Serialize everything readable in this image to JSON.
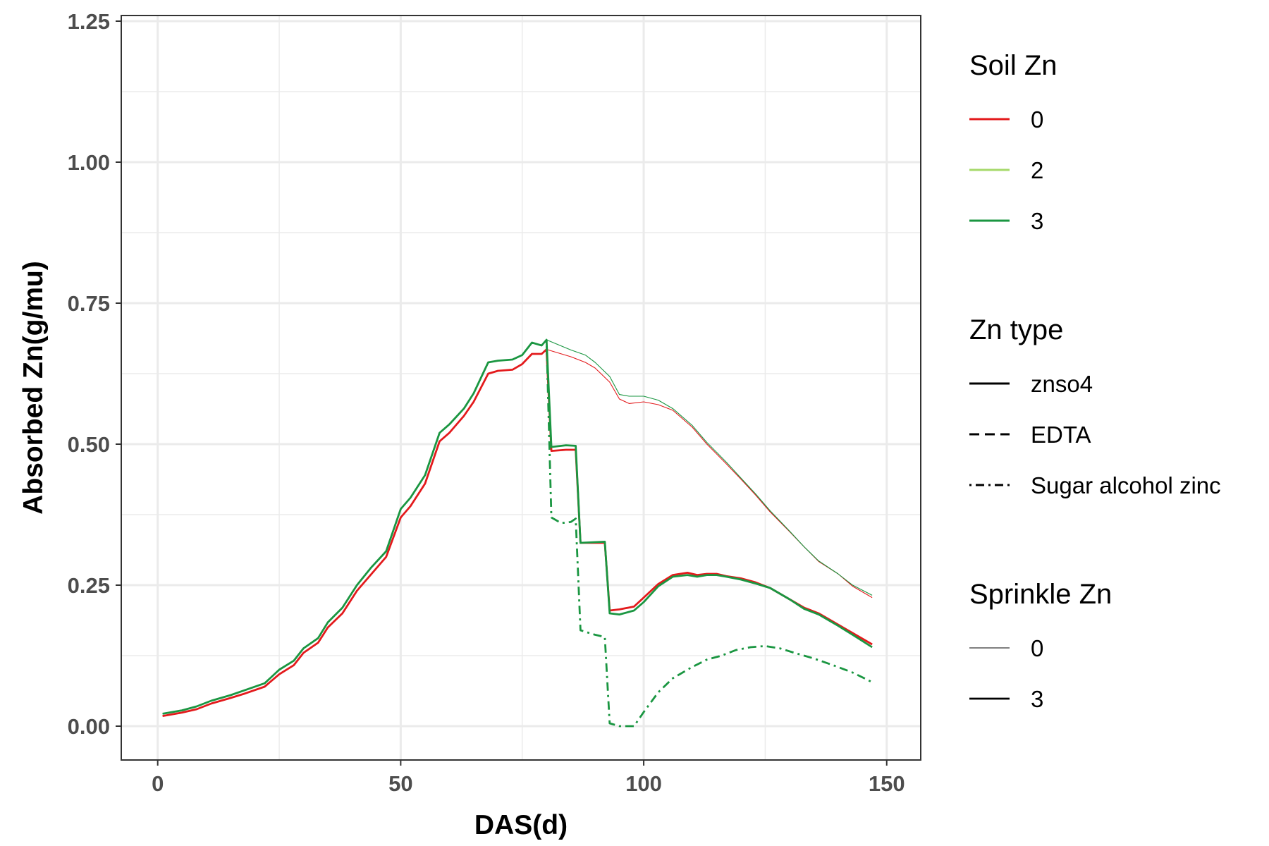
{
  "chart_data": {
    "type": "line",
    "xlabel": "DAS(d)",
    "ylabel": "Absorbed Zn(g/mu)",
    "xlim": [
      -7.5,
      157
    ],
    "ylim": [
      -0.06,
      1.26
    ],
    "x_ticks": [
      0,
      50,
      100,
      150
    ],
    "x_tick_labels": [
      "0",
      "50",
      "100",
      "150"
    ],
    "y_ticks": [
      0.0,
      0.25,
      0.5,
      0.75,
      1.0,
      1.25
    ],
    "y_tick_labels": [
      "0.00",
      "0.25",
      "0.50",
      "0.75",
      "1.00",
      "1.25"
    ],
    "grid": true,
    "legend_placement": "right",
    "legends": [
      {
        "title": "Soil Zn",
        "kind": "color",
        "entries": [
          {
            "label": "0",
            "color": "#e31a1c"
          },
          {
            "label": "2",
            "color": "#a6d96a"
          },
          {
            "label": "3",
            "color": "#1a9641"
          }
        ]
      },
      {
        "title": "Zn type",
        "kind": "linetype",
        "entries": [
          {
            "label": "znso4",
            "linetype": "solid"
          },
          {
            "label": "EDTA",
            "linetype": "dashed"
          },
          {
            "label": "Sugar alcohol zinc",
            "linetype": "dotdash"
          }
        ]
      },
      {
        "title": "Sprinkle Zn",
        "kind": "linewidth",
        "entries": [
          {
            "label": "0",
            "width": "thin"
          },
          {
            "label": "3",
            "width": "thick"
          }
        ]
      }
    ],
    "series": [
      {
        "soil_zn": "0",
        "zn_type": "znso4",
        "sprinkle_zn": "0",
        "color": "#e31a1c",
        "linetype": "solid",
        "width": "thin",
        "points": [
          [
            1,
            0.018
          ],
          [
            5,
            0.024
          ],
          [
            8,
            0.03
          ],
          [
            11,
            0.04
          ],
          [
            15,
            0.05
          ],
          [
            18,
            0.058
          ],
          [
            22,
            0.07
          ],
          [
            25,
            0.092
          ],
          [
            28,
            0.108
          ],
          [
            30,
            0.13
          ],
          [
            33,
            0.148
          ],
          [
            35,
            0.175
          ],
          [
            38,
            0.2
          ],
          [
            41,
            0.24
          ],
          [
            44,
            0.27
          ],
          [
            47,
            0.3
          ],
          [
            50,
            0.37
          ],
          [
            52,
            0.39
          ],
          [
            55,
            0.43
          ],
          [
            58,
            0.505
          ],
          [
            60,
            0.52
          ],
          [
            63,
            0.55
          ],
          [
            65,
            0.575
          ],
          [
            68,
            0.625
          ],
          [
            70,
            0.63
          ],
          [
            73,
            0.632
          ],
          [
            75,
            0.642
          ],
          [
            77,
            0.66
          ],
          [
            79,
            0.66
          ],
          [
            80,
            0.668
          ],
          [
            85,
            0.655
          ],
          [
            88,
            0.645
          ],
          [
            90,
            0.635
          ],
          [
            93,
            0.61
          ],
          [
            95,
            0.58
          ],
          [
            97,
            0.572
          ],
          [
            100,
            0.575
          ],
          [
            103,
            0.57
          ],
          [
            106,
            0.56
          ],
          [
            110,
            0.53
          ],
          [
            113,
            0.5
          ],
          [
            117,
            0.465
          ],
          [
            120,
            0.438
          ],
          [
            123,
            0.41
          ],
          [
            126,
            0.38
          ],
          [
            130,
            0.345
          ],
          [
            133,
            0.318
          ],
          [
            136,
            0.292
          ],
          [
            140,
            0.27
          ],
          [
            143,
            0.248
          ],
          [
            147,
            0.228
          ]
        ]
      },
      {
        "soil_zn": "3",
        "zn_type": "znso4",
        "sprinkle_zn": "0",
        "color": "#1a9641",
        "linetype": "solid",
        "width": "thin",
        "points": [
          [
            1,
            0.022
          ],
          [
            5,
            0.028
          ],
          [
            8,
            0.035
          ],
          [
            11,
            0.045
          ],
          [
            15,
            0.055
          ],
          [
            18,
            0.064
          ],
          [
            22,
            0.076
          ],
          [
            25,
            0.1
          ],
          [
            28,
            0.116
          ],
          [
            30,
            0.138
          ],
          [
            33,
            0.156
          ],
          [
            35,
            0.184
          ],
          [
            38,
            0.21
          ],
          [
            41,
            0.25
          ],
          [
            44,
            0.282
          ],
          [
            47,
            0.31
          ],
          [
            50,
            0.385
          ],
          [
            52,
            0.405
          ],
          [
            55,
            0.445
          ],
          [
            58,
            0.52
          ],
          [
            60,
            0.535
          ],
          [
            63,
            0.563
          ],
          [
            65,
            0.59
          ],
          [
            68,
            0.645
          ],
          [
            70,
            0.648
          ],
          [
            73,
            0.65
          ],
          [
            75,
            0.658
          ],
          [
            77,
            0.68
          ],
          [
            79,
            0.675
          ],
          [
            80,
            0.685
          ],
          [
            85,
            0.667
          ],
          [
            88,
            0.658
          ],
          [
            90,
            0.645
          ],
          [
            93,
            0.62
          ],
          [
            95,
            0.588
          ],
          [
            97,
            0.585
          ],
          [
            100,
            0.585
          ],
          [
            103,
            0.578
          ],
          [
            106,
            0.563
          ],
          [
            110,
            0.533
          ],
          [
            113,
            0.503
          ],
          [
            117,
            0.468
          ],
          [
            120,
            0.44
          ],
          [
            123,
            0.412
          ],
          [
            126,
            0.382
          ],
          [
            130,
            0.346
          ],
          [
            133,
            0.318
          ],
          [
            136,
            0.293
          ],
          [
            140,
            0.27
          ],
          [
            143,
            0.25
          ],
          [
            147,
            0.232
          ]
        ]
      },
      {
        "soil_zn": "0",
        "zn_type": "znso4",
        "sprinkle_zn": "3",
        "color": "#e31a1c",
        "linetype": "solid",
        "width": "thick",
        "points": [
          [
            1,
            0.018
          ],
          [
            5,
            0.024
          ],
          [
            8,
            0.03
          ],
          [
            11,
            0.04
          ],
          [
            15,
            0.05
          ],
          [
            18,
            0.058
          ],
          [
            22,
            0.07
          ],
          [
            25,
            0.092
          ],
          [
            28,
            0.108
          ],
          [
            30,
            0.13
          ],
          [
            33,
            0.148
          ],
          [
            35,
            0.175
          ],
          [
            38,
            0.2
          ],
          [
            41,
            0.24
          ],
          [
            44,
            0.27
          ],
          [
            47,
            0.3
          ],
          [
            50,
            0.37
          ],
          [
            52,
            0.39
          ],
          [
            55,
            0.43
          ],
          [
            58,
            0.505
          ],
          [
            60,
            0.52
          ],
          [
            63,
            0.55
          ],
          [
            65,
            0.575
          ],
          [
            68,
            0.625
          ],
          [
            70,
            0.63
          ],
          [
            73,
            0.632
          ],
          [
            75,
            0.642
          ],
          [
            77,
            0.66
          ],
          [
            79,
            0.66
          ],
          [
            80,
            0.668
          ],
          [
            81,
            0.488
          ],
          [
            84,
            0.49
          ],
          [
            86,
            0.49
          ],
          [
            87,
            0.325
          ],
          [
            92,
            0.325
          ],
          [
            93,
            0.205
          ],
          [
            95,
            0.207
          ],
          [
            98,
            0.212
          ],
          [
            100,
            0.228
          ],
          [
            103,
            0.252
          ],
          [
            106,
            0.268
          ],
          [
            109,
            0.272
          ],
          [
            111,
            0.268
          ],
          [
            113,
            0.27
          ],
          [
            115,
            0.27
          ],
          [
            117,
            0.266
          ],
          [
            120,
            0.262
          ],
          [
            123,
            0.255
          ],
          [
            126,
            0.245
          ],
          [
            130,
            0.225
          ],
          [
            133,
            0.21
          ],
          [
            136,
            0.2
          ],
          [
            140,
            0.18
          ],
          [
            143,
            0.165
          ],
          [
            147,
            0.145
          ]
        ]
      },
      {
        "soil_zn": "3",
        "zn_type": "znso4",
        "sprinkle_zn": "3",
        "color": "#1a9641",
        "linetype": "solid",
        "width": "thick",
        "points": [
          [
            1,
            0.022
          ],
          [
            5,
            0.028
          ],
          [
            8,
            0.035
          ],
          [
            11,
            0.045
          ],
          [
            15,
            0.055
          ],
          [
            18,
            0.064
          ],
          [
            22,
            0.076
          ],
          [
            25,
            0.1
          ],
          [
            28,
            0.116
          ],
          [
            30,
            0.138
          ],
          [
            33,
            0.156
          ],
          [
            35,
            0.184
          ],
          [
            38,
            0.21
          ],
          [
            41,
            0.25
          ],
          [
            44,
            0.282
          ],
          [
            47,
            0.31
          ],
          [
            50,
            0.385
          ],
          [
            52,
            0.405
          ],
          [
            55,
            0.445
          ],
          [
            58,
            0.52
          ],
          [
            60,
            0.535
          ],
          [
            63,
            0.563
          ],
          [
            65,
            0.59
          ],
          [
            68,
            0.645
          ],
          [
            70,
            0.648
          ],
          [
            73,
            0.65
          ],
          [
            75,
            0.658
          ],
          [
            77,
            0.68
          ],
          [
            79,
            0.675
          ],
          [
            80,
            0.685
          ],
          [
            81,
            0.495
          ],
          [
            84,
            0.498
          ],
          [
            86,
            0.497
          ],
          [
            87,
            0.325
          ],
          [
            92,
            0.327
          ],
          [
            93,
            0.2
          ],
          [
            95,
            0.198
          ],
          [
            98,
            0.205
          ],
          [
            100,
            0.22
          ],
          [
            103,
            0.248
          ],
          [
            106,
            0.265
          ],
          [
            109,
            0.268
          ],
          [
            111,
            0.265
          ],
          [
            113,
            0.268
          ],
          [
            115,
            0.268
          ],
          [
            117,
            0.265
          ],
          [
            120,
            0.26
          ],
          [
            123,
            0.253
          ],
          [
            126,
            0.245
          ],
          [
            130,
            0.225
          ],
          [
            133,
            0.208
          ],
          [
            136,
            0.198
          ],
          [
            140,
            0.178
          ],
          [
            143,
            0.162
          ],
          [
            147,
            0.14
          ]
        ]
      },
      {
        "soil_zn": "3",
        "zn_type": "Sugar alcohol zinc",
        "sprinkle_zn": "3",
        "color": "#1a9641",
        "linetype": "dotdash",
        "width": "thick",
        "points": [
          [
            80,
            0.685
          ],
          [
            81,
            0.37
          ],
          [
            83,
            0.36
          ],
          [
            85,
            0.362
          ],
          [
            86,
            0.368
          ],
          [
            87,
            0.17
          ],
          [
            90,
            0.162
          ],
          [
            92,
            0.158
          ],
          [
            93,
            0.005
          ],
          [
            95,
            0.0
          ],
          [
            98,
            0.0
          ],
          [
            100,
            0.025
          ],
          [
            103,
            0.06
          ],
          [
            106,
            0.085
          ],
          [
            110,
            0.105
          ],
          [
            113,
            0.118
          ],
          [
            116,
            0.125
          ],
          [
            119,
            0.135
          ],
          [
            122,
            0.14
          ],
          [
            125,
            0.142
          ],
          [
            128,
            0.138
          ],
          [
            131,
            0.13
          ],
          [
            135,
            0.12
          ],
          [
            139,
            0.108
          ],
          [
            143,
            0.095
          ],
          [
            147,
            0.078
          ]
        ]
      }
    ]
  }
}
